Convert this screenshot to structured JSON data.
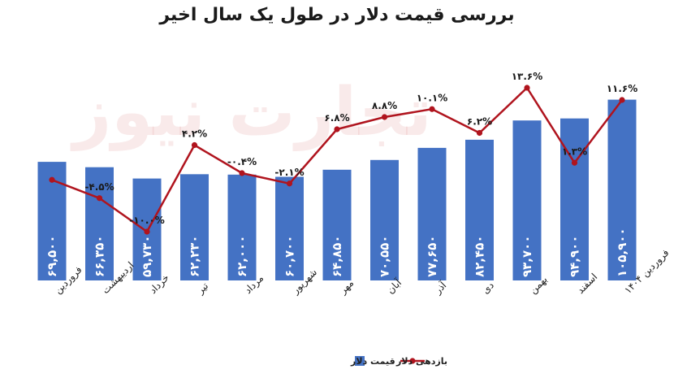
{
  "colors": {
    "bar": "#4472C4",
    "line": "#B0141E",
    "watermark": "#e8a0a0"
  },
  "watermark_text": "تجارت نیوز",
  "chart_data": {
    "type": "bar",
    "title": "بررسی قیمت دلار در طول یک سال اخیر",
    "categories": [
      "فروردین",
      "اردیبهشت",
      "خرداد",
      "تیر",
      "مرداد",
      "شهریور",
      "مهر",
      "آبان",
      "آذر",
      "دی",
      "بهمن",
      "اسفند",
      "فروردین ۱۴۰۴"
    ],
    "ylim": [
      0,
      130000
    ],
    "series": [
      {
        "name": "قیمت دلار",
        "type": "bar",
        "values": [
          69500,
          66350,
          59730,
          62230,
          62000,
          60700,
          64850,
          70550,
          77650,
          82450,
          93700,
          94900,
          105900
        ],
        "labels": [
          "۶۹,۵۰۰",
          "۶۶,۳۵۰",
          "۵۹,۷۳۰",
          "۶۲,۲۳۰",
          "۶۲,۰۰۰",
          "۶۰,۷۰۰",
          "۶۴,۸۵۰",
          "۷۰,۵۵۰",
          "۷۷,۶۵۰",
          "۸۲,۴۵۰",
          "۹۳,۷۰۰",
          "۹۴,۹۰۰",
          "۱۰۵,۹۰۰"
        ]
      },
      {
        "name": "بازدهی دلار",
        "type": "line",
        "values": [
          null,
          -4.5,
          -10.0,
          4.2,
          -0.4,
          -2.1,
          6.8,
          8.8,
          10.1,
          6.2,
          13.6,
          1.3,
          11.6
        ],
        "labels": [
          "",
          "-۴.۵%",
          "-۱۰.۰%",
          "۴.۲%",
          "-۰.۴%",
          "-۲.۱%",
          "۶.۸%",
          "۸.۸%",
          "۱۰.۱%",
          "۶.۲%",
          "۱۳.۶%",
          "۱.۳%",
          "۱۱.۶%"
        ],
        "first_point_value_approx": -1.5,
        "ylim": [
          -12,
          16
        ]
      }
    ],
    "legend": {
      "placement": "bottom-center",
      "items": [
        "قیمت دلار",
        "بازدهی دلار"
      ]
    },
    "grid": false
  }
}
